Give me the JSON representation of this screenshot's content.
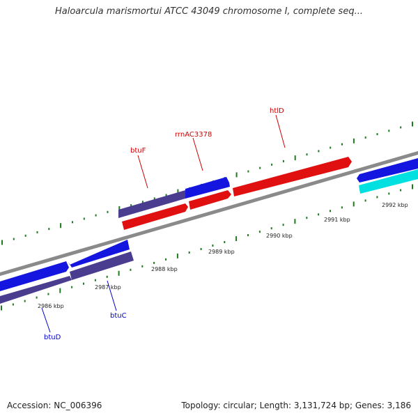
{
  "title": "Haloarcula marismortui ATCC 43049 chromosome I, complete seq...",
  "footer": {
    "accession": "Accession: NC_006396",
    "summary": "Topology: circular; Length: 3,131,724 bp; Genes: 3,186"
  },
  "colors": {
    "label_forward": "#cc0000",
    "label_reverse": "#0000cc",
    "tick": "#1e7a1e",
    "backbone": "#888888"
  },
  "kbp_labels": [
    "2986 kbp",
    "2987 kbp",
    "2988 kbp",
    "2989 kbp",
    "2990 kbp",
    "2991 kbp",
    "2992 kbp"
  ],
  "gene_labels": {
    "btuF": "btuF",
    "rrnAC3378": "rrnAC3378",
    "htlD": "htlD",
    "btuC": "btuC",
    "btuD": "btuD"
  }
}
